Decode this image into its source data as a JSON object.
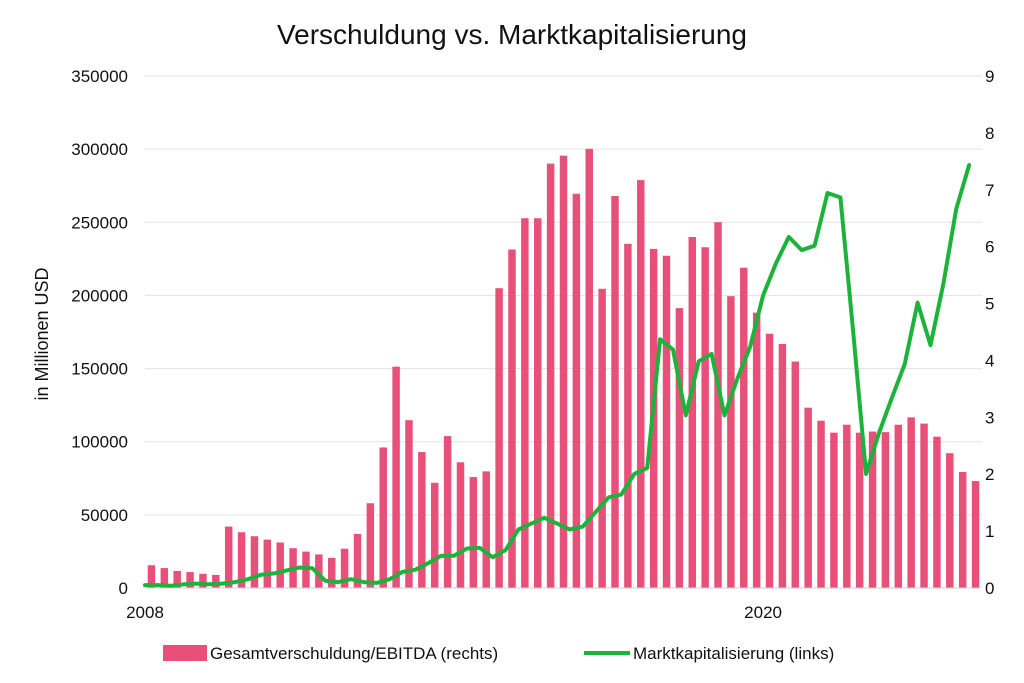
{
  "chart_data": {
    "type": "bar",
    "title": "Verschuldung vs. Marktkapitalisierung",
    "xlabel": "",
    "ylabel": "in Millionen USD",
    "y2label": "",
    "ylim": [
      0,
      350000
    ],
    "y2lim": [
      0,
      9
    ],
    "y_ticks": [
      "0",
      "50000",
      "100000",
      "150000",
      "200000",
      "250000",
      "300000",
      "350000"
    ],
    "y2_ticks": [
      "0",
      "1",
      "2",
      "3",
      "4",
      "5",
      "6",
      "7",
      "8",
      "9"
    ],
    "x_tick_labels": [
      {
        "label": "2008",
        "index": 0
      },
      {
        "label": "2020",
        "index": 48
      }
    ],
    "grid": true,
    "legend_position": "bottom",
    "series": [
      {
        "name": "Gesamtverschuldung/EBITDA (rechts)",
        "type": "bar",
        "axis": "right",
        "color": "#e8507a",
        "values": [
          0.4,
          0.35,
          0.3,
          0.28,
          0.25,
          0.23,
          1.08,
          0.98,
          0.91,
          0.85,
          0.8,
          0.7,
          0.64,
          0.59,
          0.53,
          0.69,
          0.95,
          1.49,
          2.47,
          3.89,
          2.95,
          2.39,
          1.85,
          2.67,
          2.21,
          1.95,
          2.05,
          5.27,
          5.95,
          6.5,
          6.5,
          7.46,
          7.6,
          6.93,
          7.72,
          5.26,
          6.89,
          6.05,
          7.17,
          5.96,
          5.84,
          4.92,
          6.17,
          5.99,
          6.43,
          5.13,
          5.63,
          4.84,
          4.47,
          4.29,
          3.98,
          3.17,
          2.94,
          2.73,
          2.87,
          2.73,
          2.75,
          2.74,
          2.87,
          3.0,
          2.89,
          2.66,
          2.37,
          2.04,
          1.88
        ]
      },
      {
        "name": "Marktkapitalisierung (links)",
        "type": "line",
        "axis": "left",
        "color": "#1db33b",
        "values": [
          2000,
          2000,
          1500,
          2500,
          3000,
          2500,
          3000,
          4000,
          6000,
          9000,
          10000,
          12000,
          14000,
          13500,
          5000,
          4000,
          6000,
          4000,
          3500,
          6000,
          11000,
          12500,
          17000,
          22000,
          22000,
          27000,
          27500,
          21000,
          26000,
          40000,
          44000,
          48000,
          44000,
          40000,
          42000,
          52000,
          62000,
          64000,
          78000,
          82000,
          170000,
          163000,
          118000,
          155000,
          160000,
          118000,
          143000,
          165000,
          200000,
          222000,
          240000,
          231000,
          234000,
          270000,
          267000,
          175000,
          78000,
          106000,
          130000,
          153000,
          195000,
          166000,
          208000,
          259000,
          289000
        ]
      }
    ]
  }
}
